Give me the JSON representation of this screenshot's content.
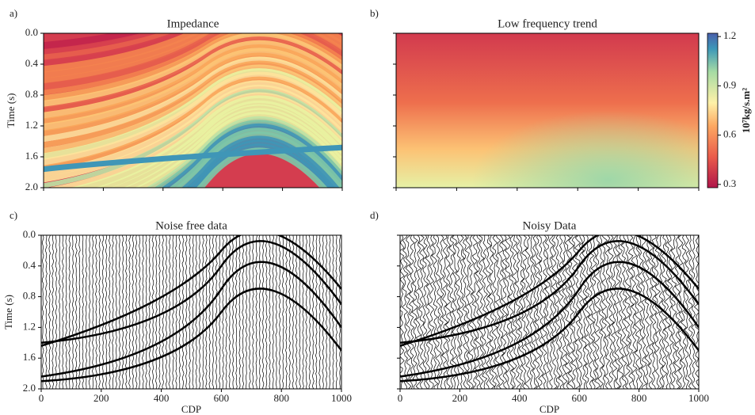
{
  "chart_data": [
    {
      "type": "heatmap",
      "panel_label": "a)",
      "title": "Impedance",
      "ylabel": "Time (s)",
      "xlim": [
        0,
        1000
      ],
      "xticks": [
        0,
        200,
        400,
        600,
        800,
        1000
      ],
      "show_xtick_labels": false,
      "ylim": [
        2,
        0
      ],
      "yticks": [
        {
          "value": 0,
          "label": "0.0"
        },
        {
          "value": 0.4,
          "label": "0.4"
        },
        {
          "value": 0.8,
          "label": "0.8"
        },
        {
          "value": 1.2,
          "label": "1.2"
        },
        {
          "value": 1.6,
          "label": "1.6"
        },
        {
          "value": 2,
          "label": "2.0"
        }
      ],
      "show_ytick_labels": true
    },
    {
      "type": "heatmap",
      "panel_label": "b)",
      "title": "Low frequency trend",
      "xlim": [
        0,
        1000
      ],
      "xticks": [
        0,
        200,
        400,
        600,
        800,
        1000
      ],
      "show_xtick_labels": false,
      "ylim": [
        2,
        0
      ],
      "yticks": [
        0,
        0.4,
        0.8,
        1.2,
        1.6,
        2
      ],
      "show_ytick_labels": false,
      "colorbar": {
        "label": "10⁷kg/s.m²",
        "clim": [
          0.28,
          1.22
        ],
        "ticks": [
          0.3,
          0.6,
          0.9,
          1.2
        ]
      }
    },
    {
      "type": "wiggle",
      "panel_label": "c)",
      "title": "Noise free data",
      "ylabel": "Time (s)",
      "xlabel": "CDP",
      "xlim": [
        0,
        1000
      ],
      "xticks": [
        0,
        200,
        400,
        600,
        800,
        1000
      ],
      "show_xtick_labels": true,
      "ylim": [
        2,
        0
      ],
      "yticks": [
        {
          "value": 0,
          "label": "0.0"
        },
        {
          "value": 0.4,
          "label": "0.4"
        },
        {
          "value": 0.8,
          "label": "0.8"
        },
        {
          "value": 1.2,
          "label": "1.2"
        },
        {
          "value": 1.6,
          "label": "1.6"
        },
        {
          "value": 2,
          "label": "2.0"
        }
      ],
      "show_ytick_labels": true
    },
    {
      "type": "wiggle",
      "panel_label": "d)",
      "title": "Noisy Data",
      "xlabel": "CDP",
      "xlim": [
        0,
        1000
      ],
      "xticks": [
        0,
        200,
        400,
        600,
        800,
        1000
      ],
      "show_xtick_labels": true,
      "ylim": [
        2,
        0
      ],
      "yticks": [
        0,
        0.4,
        0.8,
        1.2,
        1.6,
        2
      ],
      "show_ytick_labels": false
    }
  ]
}
